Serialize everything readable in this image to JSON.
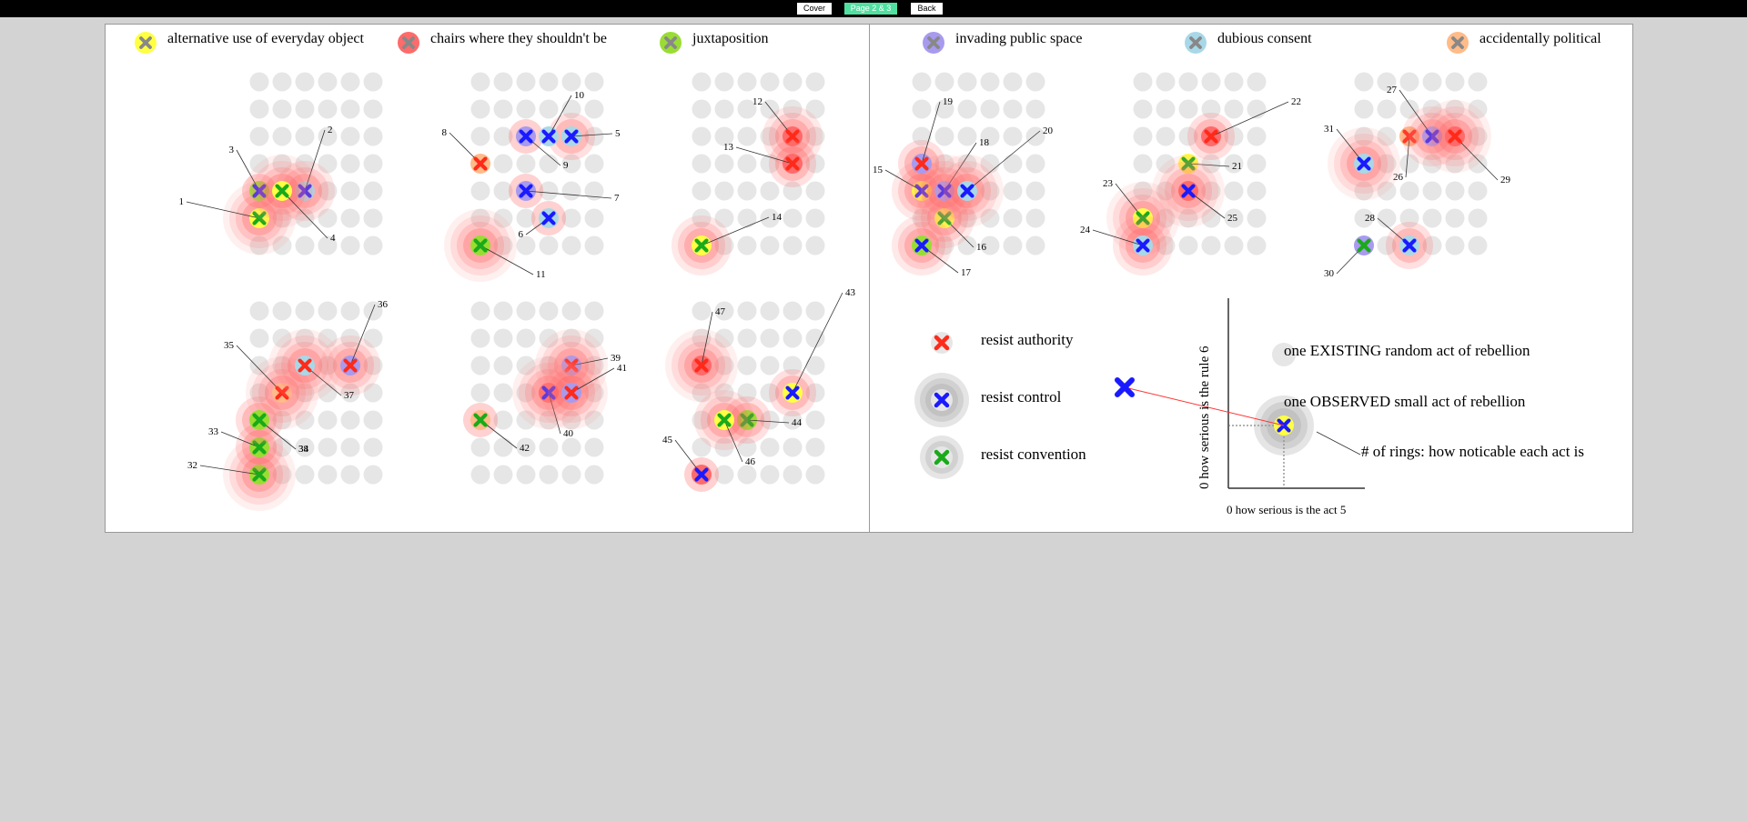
{
  "nav": {
    "cover": "Cover",
    "page": "Page 2 & 3",
    "back": "Back"
  },
  "colors": {
    "authority": "#ff2a1a",
    "control": "#1a1aff",
    "convention": "#1aaa1a",
    "ring": "#ff6a6a",
    "dot": "#e6e6e6"
  },
  "categories": [
    {
      "label": "alternative use of everyday object",
      "color": "#ffff44"
    },
    {
      "label": "chairs where they shouldn't be",
      "color": "#ff6a6a"
    },
    {
      "label": "juxtaposition",
      "color": "#99dd33"
    },
    {
      "label": "invading public space",
      "color": "#a89aee"
    },
    {
      "label": "dubious consent",
      "color": "#a8d8e8"
    },
    {
      "label": "accidentally political",
      "color": "#ffbb88"
    }
  ],
  "acts": [
    {
      "id": "1",
      "cat": 0,
      "type": "convention",
      "rings": 4
    },
    {
      "id": "2",
      "cat": 4,
      "type": "control",
      "rings": 3
    },
    {
      "id": "3",
      "cat": 2,
      "type": "control",
      "rings": 1
    },
    {
      "id": "4",
      "cat": 0,
      "type": "convention",
      "rings": 4
    },
    {
      "id": "5",
      "cat": 4,
      "type": "control",
      "rings": 2
    },
    {
      "id": "6",
      "cat": 4,
      "type": "control",
      "rings": 1
    },
    {
      "id": "7",
      "cat": 3,
      "type": "control",
      "rings": 1
    },
    {
      "id": "8",
      "cat": 5,
      "type": "authority",
      "rings": 0
    },
    {
      "id": "9",
      "cat": 3,
      "type": "control",
      "rings": 1
    },
    {
      "id": "10",
      "cat": 4,
      "type": "control",
      "rings": 0
    },
    {
      "id": "11",
      "cat": 2,
      "type": "convention",
      "rings": 4
    },
    {
      "id": "12",
      "cat": 1,
      "type": "authority",
      "rings": 3
    },
    {
      "id": "13",
      "cat": 1,
      "type": "authority",
      "rings": 2
    },
    {
      "id": "14",
      "cat": 0,
      "type": "convention",
      "rings": 3
    },
    {
      "id": "15",
      "cat": 0,
      "type": "control",
      "rings": 3
    },
    {
      "id": "16",
      "cat": 0,
      "type": "convention",
      "rings": 3
    },
    {
      "id": "17",
      "cat": 2,
      "type": "control",
      "rings": 3
    },
    {
      "id": "18",
      "cat": 3,
      "type": "control",
      "rings": 4
    },
    {
      "id": "19",
      "cat": 3,
      "type": "authority",
      "rings": 2
    },
    {
      "id": "20",
      "cat": 4,
      "type": "control",
      "rings": 4
    },
    {
      "id": "21",
      "cat": 0,
      "type": "convention",
      "rings": 0
    },
    {
      "id": "22",
      "cat": 1,
      "type": "authority",
      "rings": 2
    },
    {
      "id": "23",
      "cat": 0,
      "type": "convention",
      "rings": 4
    },
    {
      "id": "24",
      "cat": 4,
      "type": "control",
      "rings": 3
    },
    {
      "id": "25",
      "cat": 1,
      "type": "control",
      "rings": 4
    },
    {
      "id": "26",
      "cat": 5,
      "type": "authority",
      "rings": 0
    },
    {
      "id": "27",
      "cat": 3,
      "type": "control",
      "rings": 3
    },
    {
      "id": "29",
      "cat": 1,
      "type": "authority",
      "rings": 4
    },
    {
      "id": "30",
      "cat": 3,
      "type": "convention",
      "rings": 0
    },
    {
      "id": "28",
      "cat": 4,
      "type": "control",
      "rings": 2
    },
    {
      "id": "31",
      "cat": 4,
      "type": "control",
      "rings": 4
    },
    {
      "id": "32",
      "cat": 2,
      "type": "convention",
      "rings": 4
    },
    {
      "id": "33",
      "cat": 2,
      "type": "convention",
      "rings": 2
    },
    {
      "id": "34",
      "cat": 4,
      "type": "control",
      "rings": 2
    },
    {
      "id": "35",
      "cat": 5,
      "type": "authority",
      "rings": 4
    },
    {
      "id": "36",
      "cat": 3,
      "type": "authority",
      "rings": 3
    },
    {
      "id": "37",
      "cat": 4,
      "type": "authority",
      "rings": 4
    },
    {
      "id": "38",
      "cat": 2,
      "type": "convention",
      "rings": 0
    },
    {
      "id": "39",
      "cat": 3,
      "type": "authority",
      "rings": 4
    },
    {
      "id": "40",
      "cat": 1,
      "type": "control",
      "rings": 4
    },
    {
      "id": "41",
      "cat": 3,
      "type": "authority",
      "rings": 4
    },
    {
      "id": "42",
      "cat": 5,
      "type": "convention",
      "rings": 1
    },
    {
      "id": "43",
      "cat": 0,
      "type": "control",
      "rings": 2
    },
    {
      "id": "44",
      "cat": 2,
      "type": "convention",
      "rings": 2
    },
    {
      "id": "45",
      "cat": 1,
      "type": "control",
      "rings": 1
    },
    {
      "id": "46",
      "cat": 0,
      "type": "convention",
      "rings": 3
    },
    {
      "id": "47",
      "cat": 1,
      "type": "authority",
      "rings": 4
    }
  ],
  "legend": {
    "authority": "resist authority",
    "control": "resist control",
    "convention": "resist convention",
    "existing": "one EXISTING random act of rebellion",
    "observed": "one OBSERVED small act of rebellion",
    "rings": "# of rings: how noticable each act is",
    "yaxis": "0 how serious is the rule 6",
    "xaxis": "0 how serious is the act 5"
  }
}
